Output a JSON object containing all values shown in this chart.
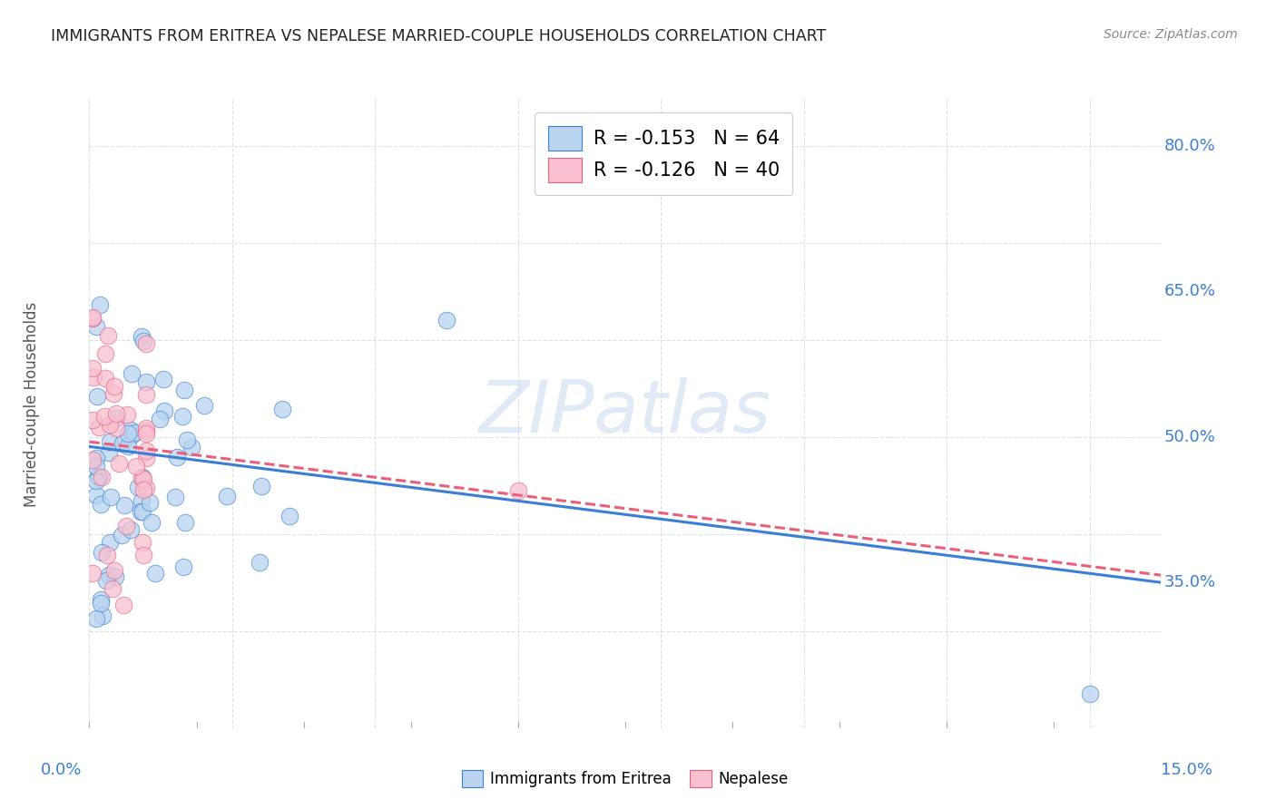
{
  "title": "IMMIGRANTS FROM ERITREA VS NEPALESE MARRIED-COUPLE HOUSEHOLDS CORRELATION CHART",
  "source": "Source: ZipAtlas.com",
  "ylabel": "Married-couple Households",
  "ylabel_right_labels": [
    "35.0%",
    "50.0%",
    "65.0%",
    "80.0%"
  ],
  "ylabel_right_values": [
    0.35,
    0.5,
    0.65,
    0.8
  ],
  "xlim": [
    0.0,
    0.15
  ],
  "ylim": [
    0.2,
    0.85
  ],
  "legend1_label": "R = -0.153   N = 64",
  "legend2_label": "R = -0.126   N = 40",
  "series1_face_color": "#b8d4f0",
  "series2_face_color": "#f8c0d0",
  "trendline1_color": "#3a7fd5",
  "trendline2_color": "#e8607a",
  "watermark_text": "ZIPatlas",
  "watermark_color": "#c8d8f0",
  "grid_color": "#d8e0ec",
  "background_color": "#ffffff",
  "right_axis_color": "#3a7fd5",
  "bottom_axis_color": "#3a7fd5"
}
